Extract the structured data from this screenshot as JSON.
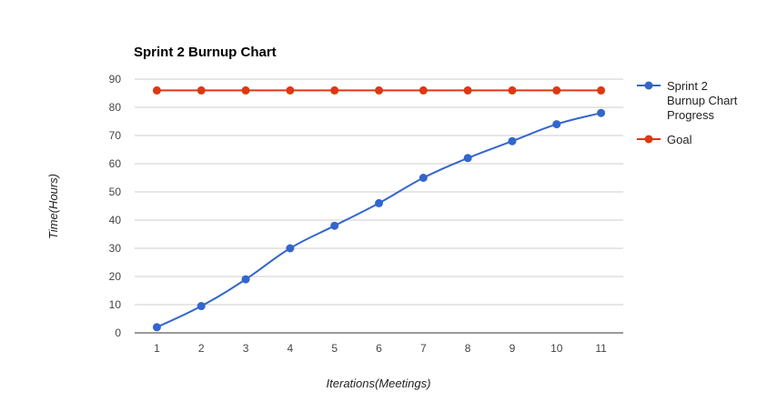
{
  "chart_data": {
    "type": "line",
    "title": "Sprint 2 Burnup Chart",
    "xlabel": "Iterations(Meetings)",
    "ylabel": "Time(Hours)",
    "x": [
      1,
      2,
      3,
      4,
      5,
      6,
      7,
      8,
      9,
      10,
      11
    ],
    "ylim": [
      0,
      90
    ],
    "yticks": [
      0,
      10,
      20,
      30,
      40,
      50,
      60,
      70,
      80,
      90
    ],
    "grid": true,
    "legend_position": "right",
    "series": [
      {
        "name": "Sprint 2 Burnup Chart Progress",
        "legend_lines": [
          "Sprint 2",
          "Burnup Chart",
          "Progress"
        ],
        "color": "#3366cc",
        "values": [
          2,
          9.5,
          19,
          30,
          38,
          46,
          55,
          62,
          68,
          74,
          78
        ]
      },
      {
        "name": "Goal",
        "legend_lines": [
          "Goal"
        ],
        "color": "#dc3912",
        "values": [
          86,
          86,
          86,
          86,
          86,
          86,
          86,
          86,
          86,
          86,
          86
        ]
      }
    ]
  }
}
